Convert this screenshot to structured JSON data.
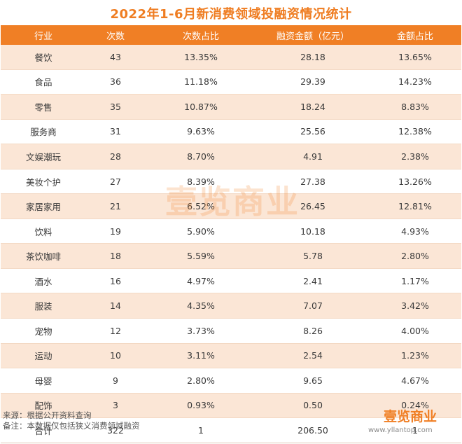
{
  "title": "2022年1-6月新消费领域投融资情况统计",
  "table": {
    "headers": [
      "行业",
      "次数",
      "次数占比",
      "融资金额（亿元）",
      "金额占比"
    ],
    "rows": [
      [
        "餐饮",
        "43",
        "13.35%",
        "28.18",
        "13.65%"
      ],
      [
        "食品",
        "36",
        "11.18%",
        "29.39",
        "14.23%"
      ],
      [
        "零售",
        "35",
        "10.87%",
        "18.24",
        "8.83%"
      ],
      [
        "服务商",
        "31",
        "9.63%",
        "25.56",
        "12.38%"
      ],
      [
        "文娱潮玩",
        "28",
        "8.70%",
        "4.91",
        "2.38%"
      ],
      [
        "美妆个护",
        "27",
        "8.39%",
        "27.38",
        "13.26%"
      ],
      [
        "家居家用",
        "21",
        "6.52%",
        "26.45",
        "12.81%"
      ],
      [
        "饮料",
        "19",
        "5.90%",
        "10.18",
        "4.93%"
      ],
      [
        "茶饮咖啡",
        "18",
        "5.59%",
        "5.78",
        "2.80%"
      ],
      [
        "酒水",
        "16",
        "4.97%",
        "2.41",
        "1.17%"
      ],
      [
        "服装",
        "14",
        "4.35%",
        "7.07",
        "3.42%"
      ],
      [
        "宠物",
        "12",
        "3.73%",
        "8.26",
        "4.00%"
      ],
      [
        "运动",
        "10",
        "3.11%",
        "2.54",
        "1.23%"
      ],
      [
        "母婴",
        "9",
        "2.80%",
        "9.65",
        "4.67%"
      ],
      [
        "配饰",
        "3",
        "0.93%",
        "0.50",
        "0.24%"
      ]
    ],
    "total": [
      "合计",
      "322",
      "1",
      "206.50",
      "1"
    ]
  },
  "watermark": "壹览商业",
  "notes": {
    "source": "来源：根据公开资料查询",
    "remark": "备注：本数据仅包括狭义消费领域融资"
  },
  "brand": {
    "logo": "壹览商业",
    "url": "www.yllantop.com"
  },
  "colors": {
    "accent": "#f07f25",
    "stripe": "#fbe6d6"
  }
}
